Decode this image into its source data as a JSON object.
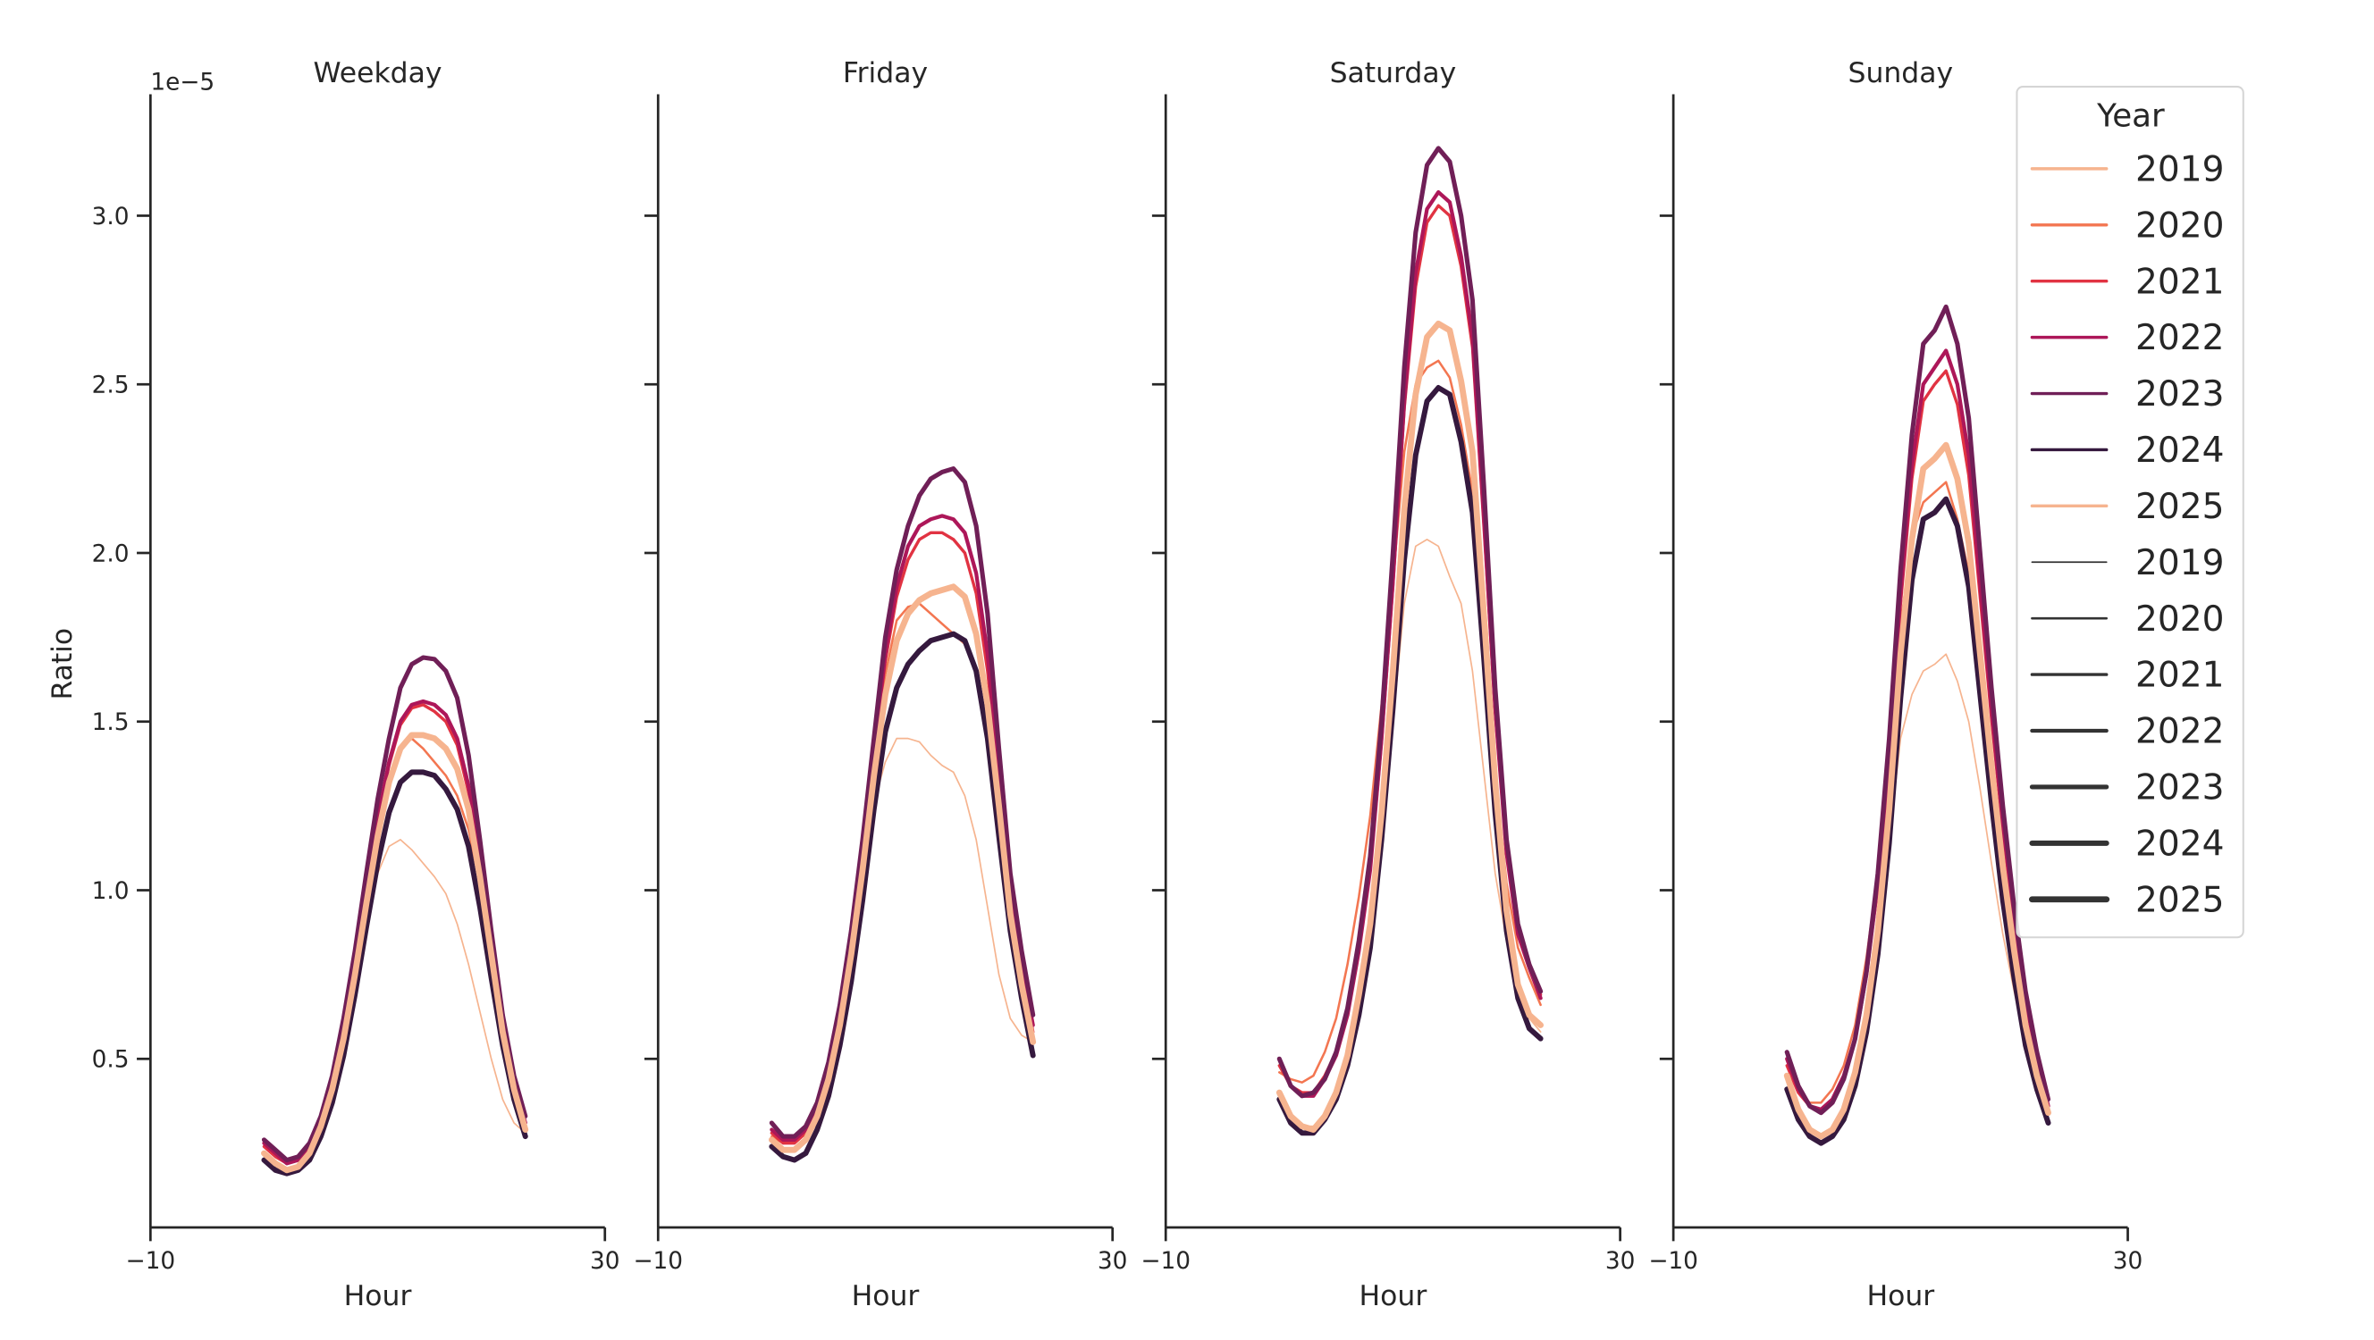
{
  "chart_data": {
    "type": "line",
    "layout": "4 panels side by side, shared y-axis",
    "ylabel": "Ratio",
    "y_offset_label": "1e−5",
    "y_scale_factor": 1e-05,
    "ylim": [
      0,
      3.36
    ],
    "yticks": [
      0.5,
      1.0,
      1.5,
      2.0,
      2.5,
      3.0
    ],
    "ytick_labels": [
      "0.5",
      "1.0",
      "1.5",
      "2.0",
      "2.5",
      "3.0"
    ],
    "xlabel": "Hour",
    "xlim": [
      -10,
      30
    ],
    "xticks": [
      -10,
      30
    ],
    "xtick_labels": [
      "−10",
      "30"
    ],
    "grid": false,
    "x": [
      0,
      1,
      2,
      3,
      4,
      5,
      6,
      7,
      8,
      9,
      10,
      11,
      12,
      13,
      14,
      15,
      16,
      17,
      18,
      19,
      20,
      21,
      22,
      23
    ],
    "legend": {
      "title": "Year",
      "placement": "top-right",
      "hue_entries": [
        {
          "label": "2019",
          "color": "#f6b48f"
        },
        {
          "label": "2020",
          "color": "#f37651"
        },
        {
          "label": "2021",
          "color": "#e13342"
        },
        {
          "label": "2022",
          "color": "#ad1759"
        },
        {
          "label": "2023",
          "color": "#701f57"
        },
        {
          "label": "2024",
          "color": "#35193e"
        },
        {
          "label": "2025",
          "color": "#f6b48f"
        }
      ],
      "size_entries": [
        {
          "label": "2019",
          "color": "#333333",
          "width": 1.0
        },
        {
          "label": "2020",
          "color": "#333333",
          "width": 1.5
        },
        {
          "label": "2021",
          "color": "#333333",
          "width": 2.0
        },
        {
          "label": "2022",
          "color": "#333333",
          "width": 2.5
        },
        {
          "label": "2023",
          "color": "#333333",
          "width": 3.0
        },
        {
          "label": "2024",
          "color": "#333333",
          "width": 3.5
        },
        {
          "label": "2025",
          "color": "#333333",
          "width": 4.0
        }
      ]
    },
    "panels": [
      {
        "title": "Weekday",
        "series": [
          {
            "name": "2019",
            "values": [
              0.21,
              0.18,
              0.16,
              0.17,
              0.21,
              0.28,
              0.39,
              0.54,
              0.72,
              0.9,
              1.05,
              1.13,
              1.15,
              1.12,
              1.08,
              1.04,
              0.99,
              0.9,
              0.78,
              0.64,
              0.5,
              0.38,
              0.31,
              0.28
            ]
          },
          {
            "name": "2020",
            "values": [
              0.22,
              0.19,
              0.17,
              0.18,
              0.22,
              0.3,
              0.41,
              0.57,
              0.76,
              0.97,
              1.17,
              1.33,
              1.42,
              1.45,
              1.42,
              1.38,
              1.34,
              1.28,
              1.18,
              1.02,
              0.8,
              0.58,
              0.41,
              0.29
            ]
          },
          {
            "name": "2021",
            "values": [
              0.24,
              0.21,
              0.19,
              0.2,
              0.24,
              0.32,
              0.43,
              0.59,
              0.78,
              1.0,
              1.21,
              1.37,
              1.49,
              1.54,
              1.55,
              1.53,
              1.5,
              1.43,
              1.29,
              1.08,
              0.83,
              0.6,
              0.42,
              0.3
            ]
          },
          {
            "name": "2022",
            "values": [
              0.25,
              0.22,
              0.19,
              0.2,
              0.24,
              0.32,
              0.43,
              0.59,
              0.78,
              1.0,
              1.21,
              1.38,
              1.5,
              1.55,
              1.56,
              1.55,
              1.52,
              1.45,
              1.31,
              1.1,
              0.85,
              0.61,
              0.43,
              0.31
            ]
          },
          {
            "name": "2023",
            "values": [
              0.26,
              0.23,
              0.2,
              0.21,
              0.25,
              0.33,
              0.45,
              0.62,
              0.82,
              1.05,
              1.27,
              1.45,
              1.6,
              1.67,
              1.69,
              1.685,
              1.65,
              1.57,
              1.4,
              1.15,
              0.88,
              0.63,
              0.45,
              0.33
            ]
          },
          {
            "name": "2024",
            "values": [
              0.2,
              0.17,
              0.16,
              0.17,
              0.2,
              0.27,
              0.37,
              0.51,
              0.69,
              0.89,
              1.08,
              1.23,
              1.32,
              1.35,
              1.35,
              1.34,
              1.3,
              1.24,
              1.13,
              0.95,
              0.74,
              0.54,
              0.38,
              0.27
            ]
          },
          {
            "name": "2025",
            "values": [
              0.22,
              0.19,
              0.17,
              0.18,
              0.22,
              0.3,
              0.41,
              0.56,
              0.75,
              0.96,
              1.16,
              1.32,
              1.42,
              1.46,
              1.46,
              1.45,
              1.42,
              1.36,
              1.24,
              1.04,
              0.81,
              0.58,
              0.41,
              0.29
            ]
          }
        ]
      },
      {
        "title": "Friday",
        "series": [
          {
            "name": "2019",
            "values": [
              0.26,
              0.23,
              0.23,
              0.26,
              0.33,
              0.44,
              0.6,
              0.81,
              1.05,
              1.26,
              1.38,
              1.45,
              1.45,
              1.44,
              1.4,
              1.37,
              1.35,
              1.28,
              1.15,
              0.95,
              0.75,
              0.62,
              0.57,
              0.55
            ]
          },
          {
            "name": "2020",
            "values": [
              0.27,
              0.25,
              0.26,
              0.29,
              0.36,
              0.48,
              0.65,
              0.88,
              1.14,
              1.42,
              1.64,
              1.8,
              1.84,
              1.85,
              1.82,
              1.79,
              1.76,
              1.73,
              1.65,
              1.48,
              1.22,
              0.93,
              0.72,
              0.56
            ]
          },
          {
            "name": "2021",
            "values": [
              0.28,
              0.25,
              0.25,
              0.28,
              0.35,
              0.47,
              0.63,
              0.85,
              1.11,
              1.4,
              1.68,
              1.87,
              1.98,
              2.04,
              2.06,
              2.06,
              2.04,
              2.0,
              1.88,
              1.65,
              1.32,
              0.98,
              0.76,
              0.58
            ]
          },
          {
            "name": "2022",
            "values": [
              0.29,
              0.26,
              0.26,
              0.29,
              0.36,
              0.48,
              0.64,
              0.86,
              1.12,
              1.42,
              1.7,
              1.9,
              2.02,
              2.08,
              2.1,
              2.11,
              2.1,
              2.06,
              1.94,
              1.7,
              1.35,
              1.0,
              0.78,
              0.6
            ]
          },
          {
            "name": "2023",
            "values": [
              0.31,
              0.27,
              0.27,
              0.3,
              0.37,
              0.49,
              0.66,
              0.88,
              1.15,
              1.45,
              1.75,
              1.95,
              2.08,
              2.17,
              2.22,
              2.24,
              2.25,
              2.21,
              2.08,
              1.82,
              1.42,
              1.05,
              0.82,
              0.63
            ]
          },
          {
            "name": "2024",
            "values": [
              0.24,
              0.21,
              0.2,
              0.22,
              0.29,
              0.39,
              0.54,
              0.73,
              0.97,
              1.24,
              1.47,
              1.6,
              1.67,
              1.71,
              1.74,
              1.75,
              1.76,
              1.74,
              1.65,
              1.45,
              1.16,
              0.88,
              0.68,
              0.51
            ]
          },
          {
            "name": "2025",
            "values": [
              0.26,
              0.23,
              0.23,
              0.26,
              0.33,
              0.44,
              0.6,
              0.81,
              1.06,
              1.34,
              1.58,
              1.74,
              1.82,
              1.86,
              1.88,
              1.89,
              1.9,
              1.87,
              1.76,
              1.55,
              1.25,
              0.93,
              0.72,
              0.55
            ]
          }
        ]
      },
      {
        "title": "Saturday",
        "series": [
          {
            "name": "2019",
            "values": [
              0.4,
              0.33,
              0.3,
              0.3,
              0.34,
              0.4,
              0.5,
              0.66,
              0.85,
              1.15,
              1.5,
              1.85,
              2.02,
              2.04,
              2.02,
              1.93,
              1.85,
              1.65,
              1.35,
              1.05,
              0.85,
              0.7,
              0.62,
              0.58
            ]
          },
          {
            "name": "2020",
            "values": [
              0.46,
              0.44,
              0.43,
              0.45,
              0.52,
              0.62,
              0.78,
              0.98,
              1.22,
              1.55,
              1.92,
              2.3,
              2.5,
              2.55,
              2.57,
              2.52,
              2.38,
              2.18,
              1.8,
              1.35,
              1.02,
              0.83,
              0.74,
              0.66
            ]
          },
          {
            "name": "2021",
            "values": [
              0.48,
              0.42,
              0.4,
              0.4,
              0.45,
              0.52,
              0.64,
              0.82,
              1.06,
              1.44,
              1.9,
              2.43,
              2.79,
              2.98,
              3.03,
              3.0,
              2.85,
              2.61,
              2.08,
              1.53,
              1.11,
              0.87,
              0.77,
              0.69
            ]
          },
          {
            "name": "2022",
            "values": [
              0.5,
              0.42,
              0.39,
              0.39,
              0.44,
              0.51,
              0.63,
              0.82,
              1.06,
              1.45,
              1.92,
              2.45,
              2.83,
              3.02,
              3.07,
              3.04,
              2.88,
              2.64,
              2.11,
              1.54,
              1.11,
              0.87,
              0.77,
              0.68
            ]
          },
          {
            "name": "2023",
            "values": [
              0.5,
              0.42,
              0.39,
              0.4,
              0.44,
              0.52,
              0.65,
              0.85,
              1.1,
              1.5,
              2.0,
              2.55,
              2.95,
              3.15,
              3.2,
              3.16,
              3.0,
              2.75,
              2.2,
              1.6,
              1.15,
              0.9,
              0.78,
              0.7
            ]
          },
          {
            "name": "2024",
            "values": [
              0.38,
              0.31,
              0.28,
              0.28,
              0.32,
              0.38,
              0.48,
              0.63,
              0.83,
              1.15,
              1.54,
              1.98,
              2.29,
              2.45,
              2.49,
              2.47,
              2.33,
              2.12,
              1.69,
              1.23,
              0.88,
              0.68,
              0.59,
              0.56
            ]
          },
          {
            "name": "2025",
            "values": [
              0.4,
              0.33,
              0.3,
              0.29,
              0.33,
              0.4,
              0.51,
              0.69,
              0.9,
              1.23,
              1.65,
              2.13,
              2.47,
              2.64,
              2.68,
              2.66,
              2.51,
              2.3,
              1.82,
              1.32,
              0.94,
              0.72,
              0.63,
              0.6
            ]
          }
        ]
      },
      {
        "title": "Sunday",
        "series": [
          {
            "name": "2019",
            "values": [
              0.45,
              0.35,
              0.29,
              0.27,
              0.29,
              0.35,
              0.46,
              0.63,
              0.86,
              1.15,
              1.45,
              1.58,
              1.65,
              1.67,
              1.7,
              1.62,
              1.5,
              1.3,
              1.08,
              0.87,
              0.7,
              0.55,
              0.45,
              0.38
            ]
          },
          {
            "name": "2020",
            "values": [
              0.48,
              0.4,
              0.37,
              0.37,
              0.41,
              0.48,
              0.6,
              0.8,
              1.05,
              1.38,
              1.78,
              2.05,
              2.15,
              2.18,
              2.21,
              2.1,
              1.94,
              1.65,
              1.35,
              1.07,
              0.83,
              0.62,
              0.47,
              0.35
            ]
          },
          {
            "name": "2021",
            "values": [
              0.48,
              0.4,
              0.36,
              0.35,
              0.38,
              0.45,
              0.56,
              0.75,
              1.01,
              1.38,
              1.85,
              2.22,
              2.45,
              2.5,
              2.54,
              2.44,
              2.23,
              1.87,
              1.51,
              1.18,
              0.9,
              0.67,
              0.5,
              0.36
            ]
          },
          {
            "name": "2022",
            "values": [
              0.5,
              0.41,
              0.36,
              0.35,
              0.38,
              0.45,
              0.56,
              0.75,
              1.02,
              1.4,
              1.88,
              2.26,
              2.5,
              2.55,
              2.6,
              2.5,
              2.29,
              1.91,
              1.54,
              1.2,
              0.92,
              0.68,
              0.5,
              0.36
            ]
          },
          {
            "name": "2023",
            "values": [
              0.52,
              0.42,
              0.36,
              0.34,
              0.37,
              0.44,
              0.56,
              0.76,
              1.05,
              1.45,
              1.95,
              2.35,
              2.62,
              2.66,
              2.73,
              2.62,
              2.4,
              2.0,
              1.6,
              1.25,
              0.95,
              0.7,
              0.52,
              0.38
            ]
          },
          {
            "name": "2024",
            "values": [
              0.41,
              0.32,
              0.27,
              0.25,
              0.27,
              0.32,
              0.42,
              0.58,
              0.81,
              1.14,
              1.57,
              1.92,
              2.1,
              2.12,
              2.16,
              2.08,
              1.9,
              1.58,
              1.26,
              0.97,
              0.74,
              0.54,
              0.41,
              0.31
            ]
          },
          {
            "name": "2025",
            "values": [
              0.45,
              0.35,
              0.29,
              0.27,
              0.29,
              0.35,
              0.46,
              0.63,
              0.88,
              1.24,
              1.7,
              2.04,
              2.25,
              2.28,
              2.32,
              2.22,
              2.03,
              1.7,
              1.37,
              1.07,
              0.82,
              0.6,
              0.45,
              0.34
            ]
          }
        ]
      }
    ]
  }
}
